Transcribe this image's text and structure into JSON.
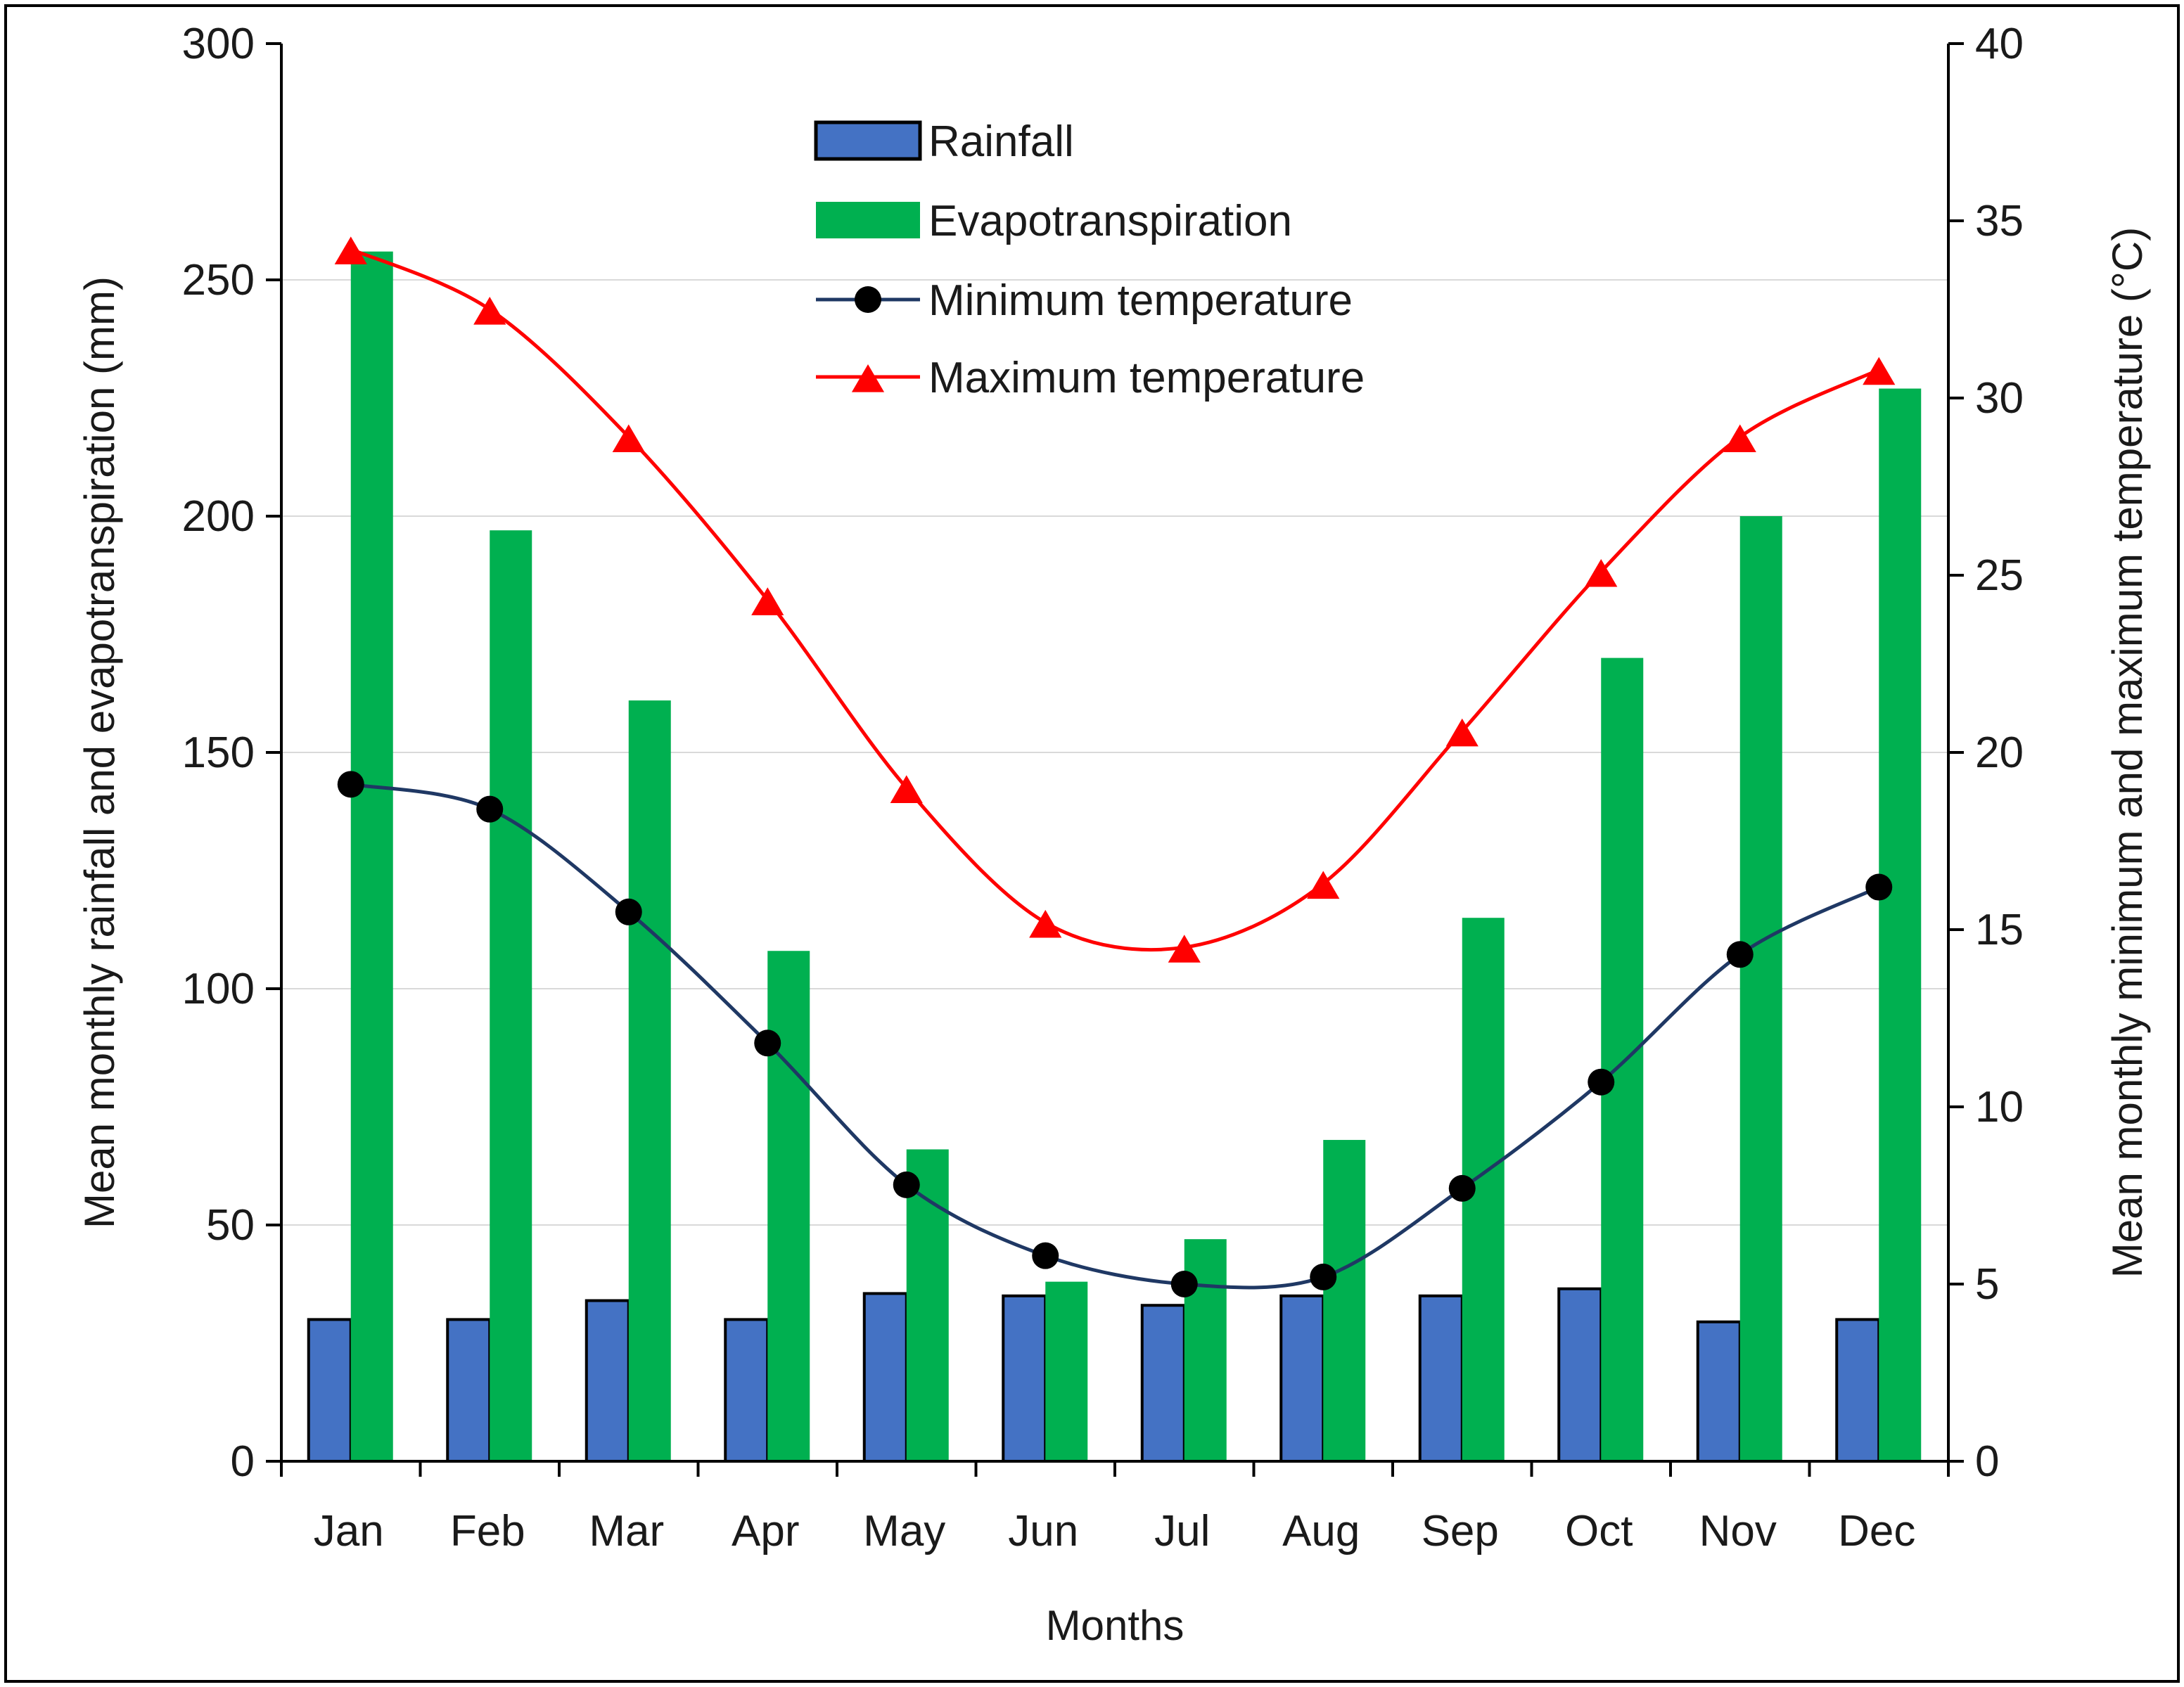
{
  "chart_data": {
    "type": "bar+line",
    "categories": [
      "Jan",
      "Feb",
      "Mar",
      "Apr",
      "May",
      "Jun",
      "Jul",
      "Aug",
      "Sep",
      "Oct",
      "Nov",
      "Dec"
    ],
    "xlabel": "Months",
    "ylabel_left": "Mean monthly rainfall and evapotranspiration (mm)",
    "ylabel_right": "Mean monthly minimum and maximum temperature (°C)",
    "ylim_left": [
      0,
      300
    ],
    "ylim_right": [
      0,
      40
    ],
    "yticks_left": [
      "0",
      "50",
      "100",
      "150",
      "200",
      "250",
      "300"
    ],
    "yticks_right": [
      "0",
      "5",
      "10",
      "15",
      "20",
      "25",
      "30",
      "35",
      "40"
    ],
    "grid": "horizontal",
    "legend_position": "top-center",
    "series": [
      {
        "name": "Rainfall",
        "kind": "bar",
        "axis": "left",
        "color": "#4472C4",
        "values": [
          30,
          30,
          34,
          30,
          35.5,
          35,
          33,
          35,
          35,
          36.5,
          29.5,
          30
        ]
      },
      {
        "name": "Evapotranspiration",
        "kind": "bar",
        "axis": "left",
        "color": "#00B050",
        "values": [
          256,
          197,
          161,
          108,
          66,
          38,
          47,
          68,
          115,
          170,
          200,
          227
        ]
      },
      {
        "name": "Minimum temperature",
        "kind": "line",
        "axis": "right",
        "color": "#1F3864",
        "marker": "circle",
        "values": [
          19.1,
          18.4,
          15.5,
          11.8,
          7.8,
          5.8,
          5.0,
          5.2,
          7.7,
          10.7,
          14.3,
          16.2
        ]
      },
      {
        "name": "Maximum temperature",
        "kind": "line",
        "axis": "right",
        "color": "#FF0000",
        "marker": "triangle",
        "values": [
          34.2,
          32.5,
          28.9,
          24.3,
          19.0,
          15.2,
          14.5,
          16.3,
          20.6,
          25.1,
          28.9,
          30.8
        ]
      }
    ]
  }
}
